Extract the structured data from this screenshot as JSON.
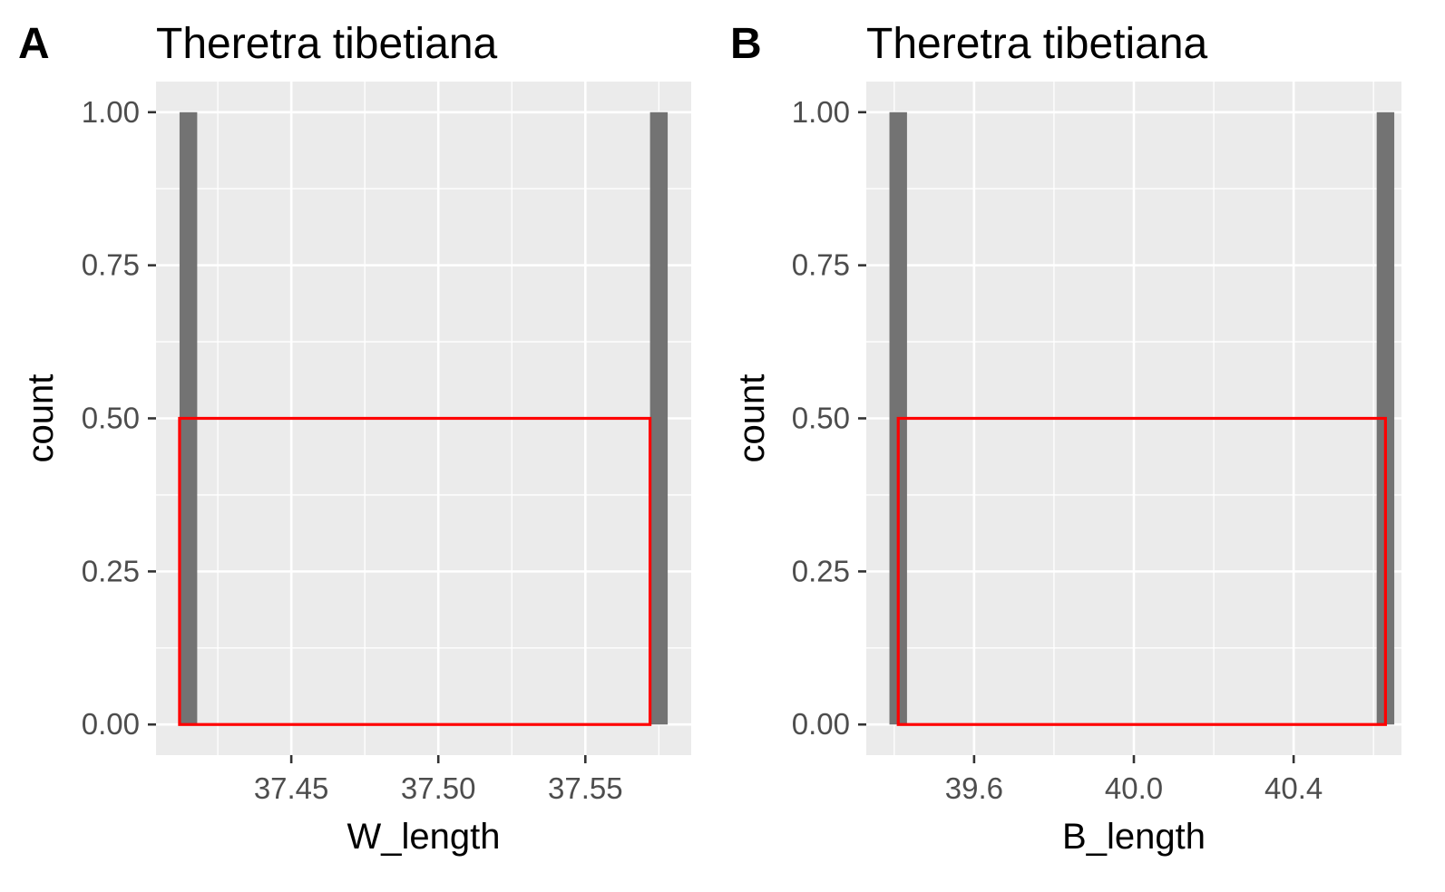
{
  "chart_data": [
    {
      "type": "bar",
      "panel_label": "A",
      "title": "Theretra tibetiana",
      "xlabel": "W_length",
      "ylabel": "count",
      "xlim": [
        37.404,
        37.586
      ],
      "ylim": [
        -0.05,
        1.05
      ],
      "x_ticks": [
        37.45,
        37.5,
        37.55
      ],
      "x_tick_labels": [
        "37.45",
        "37.50",
        "37.55"
      ],
      "y_ticks": [
        0,
        0.25,
        0.5,
        0.75,
        1
      ],
      "y_tick_labels": [
        "0.00",
        "0.25",
        "0.50",
        "0.75",
        "1.00"
      ],
      "grid": true,
      "bars": [
        {
          "x_start": 37.412,
          "x_end": 37.418,
          "count": 1
        },
        {
          "x_start": 37.572,
          "x_end": 37.578,
          "count": 1
        }
      ],
      "overlay_rect": {
        "x_start": 37.412,
        "x_end": 37.572,
        "count": 0.5,
        "color": "#ff0000"
      }
    },
    {
      "type": "bar",
      "panel_label": "B",
      "title": "Theretra tibetiana",
      "xlabel": "B_length",
      "ylabel": "count",
      "xlim": [
        39.33,
        40.67
      ],
      "ylim": [
        -0.05,
        1.05
      ],
      "x_ticks": [
        39.6,
        40.0,
        40.4
      ],
      "x_tick_labels": [
        "39.6",
        "40.0",
        "40.4"
      ],
      "y_ticks": [
        0,
        0.25,
        0.5,
        0.75,
        1
      ],
      "y_tick_labels": [
        "0.00",
        "0.25",
        "0.50",
        "0.75",
        "1.00"
      ],
      "grid": true,
      "bars": [
        {
          "x_start": 39.388,
          "x_end": 39.432,
          "count": 1
        },
        {
          "x_start": 40.608,
          "x_end": 40.652,
          "count": 1
        }
      ],
      "overlay_rect": {
        "x_start": 39.41,
        "x_end": 40.63,
        "count": 0.5,
        "color": "#ff0000"
      }
    }
  ],
  "colors": {
    "panel_background": "#ebebeb",
    "grid": "#ffffff",
    "bar_fill": "#737373",
    "overlay": "#ff0000",
    "tick_label": "#4d4d4d"
  }
}
